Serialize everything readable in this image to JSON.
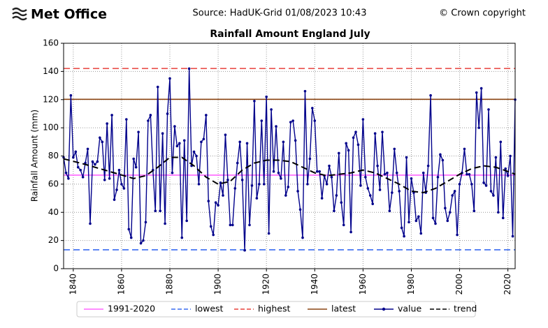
{
  "header": {
    "logo": "Met Office",
    "source": "Source: HadUK-Grid 01/08/2023 10:43",
    "copyright": "© Crown copyright"
  },
  "chart_data": {
    "type": "line",
    "title": "Rainfall Amount England July",
    "ylabel": "Rainfall Amount (mm)",
    "x": [
      1836,
      1837,
      1838,
      1839,
      1840,
      1841,
      1842,
      1843,
      1844,
      1845,
      1846,
      1847,
      1848,
      1849,
      1850,
      1851,
      1852,
      1853,
      1854,
      1855,
      1856,
      1857,
      1858,
      1859,
      1860,
      1861,
      1862,
      1863,
      1864,
      1865,
      1866,
      1867,
      1868,
      1869,
      1870,
      1871,
      1872,
      1873,
      1874,
      1875,
      1876,
      1877,
      1878,
      1879,
      1880,
      1881,
      1882,
      1883,
      1884,
      1885,
      1886,
      1887,
      1888,
      1889,
      1890,
      1891,
      1892,
      1893,
      1894,
      1895,
      1896,
      1897,
      1898,
      1899,
      1900,
      1901,
      1902,
      1903,
      1904,
      1905,
      1906,
      1907,
      1908,
      1909,
      1910,
      1911,
      1912,
      1913,
      1914,
      1915,
      1916,
      1917,
      1918,
      1919,
      1920,
      1921,
      1922,
      1923,
      1924,
      1925,
      1926,
      1927,
      1928,
      1929,
      1930,
      1931,
      1932,
      1933,
      1934,
      1935,
      1936,
      1937,
      1938,
      1939,
      1940,
      1941,
      1942,
      1943,
      1944,
      1945,
      1946,
      1947,
      1948,
      1949,
      1950,
      1951,
      1952,
      1953,
      1954,
      1955,
      1956,
      1957,
      1958,
      1959,
      1960,
      1961,
      1962,
      1963,
      1964,
      1965,
      1966,
      1967,
      1968,
      1969,
      1970,
      1971,
      1972,
      1973,
      1974,
      1975,
      1976,
      1977,
      1978,
      1979,
      1980,
      1981,
      1982,
      1983,
      1984,
      1985,
      1986,
      1987,
      1988,
      1989,
      1990,
      1991,
      1992,
      1993,
      1994,
      1995,
      1996,
      1997,
      1998,
      1999,
      2000,
      2001,
      2002,
      2003,
      2004,
      2005,
      2006,
      2007,
      2008,
      2009,
      2010,
      2011,
      2012,
      2013,
      2014,
      2015,
      2016,
      2017,
      2018,
      2019,
      2020,
      2021,
      2022,
      2023
    ],
    "xlim": [
      1836,
      2023
    ],
    "xticks": [
      1840,
      1860,
      1880,
      1900,
      1920,
      1940,
      1960,
      1980,
      2000,
      2020
    ],
    "ylim": [
      0,
      160
    ],
    "yticks": [
      0,
      20,
      40,
      60,
      80,
      100,
      120,
      140,
      160
    ],
    "grid": true,
    "legend": "bottom",
    "series": [
      {
        "name": "1991-2020",
        "color": "#ff66ff",
        "style": "solid",
        "value": 66.4
      },
      {
        "name": "lowest",
        "color": "#3a6cf0",
        "style": "dashed",
        "value": 13.4
      },
      {
        "name": "highest",
        "color": "#e8413c",
        "style": "dashed",
        "value": 142.1
      },
      {
        "name": "latest",
        "color": "#8b4513",
        "style": "solid",
        "value": 120.2
      },
      {
        "name": "value",
        "color": "#00008b",
        "style": "solid",
        "marker": "dot",
        "values": [
          79,
          68,
          64,
          123,
          79,
          83,
          72,
          70,
          65,
          75,
          85,
          32,
          76,
          74,
          76,
          93,
          90,
          63,
          103,
          64,
          109,
          49,
          56,
          70,
          60,
          57,
          106,
          28,
          22,
          78,
          72,
          97,
          18,
          20,
          33,
          105,
          109,
          70,
          41,
          129,
          41,
          96,
          32,
          110,
          135,
          68,
          101,
          87,
          89,
          22,
          91,
          34,
          142,
          73,
          83,
          80,
          60,
          90,
          92,
          109,
          48,
          30,
          24,
          47,
          45,
          61,
          52,
          95,
          63,
          31,
          31,
          57,
          75,
          90,
          63,
          13,
          89,
          31,
          59,
          119,
          50,
          60,
          105,
          60,
          122,
          25,
          113,
          69,
          101,
          68,
          64,
          90,
          52,
          58,
          104,
          105,
          91,
          55,
          42,
          22,
          126,
          60,
          78,
          114,
          105,
          69,
          69,
          50,
          66,
          60,
          73,
          65,
          41,
          52,
          82,
          47,
          31,
          89,
          84,
          26,
          93,
          97,
          88,
          59,
          106,
          65,
          57,
          52,
          46,
          96,
          73,
          56,
          97,
          67,
          68,
          41,
          54,
          85,
          68,
          55,
          29,
          23,
          79,
          33,
          64,
          54,
          34,
          37,
          25,
          68,
          54,
          73,
          123,
          36,
          32,
          65,
          81,
          77,
          43,
          34,
          40,
          52,
          55,
          24,
          60,
          68,
          85,
          67,
          67,
          60,
          41,
          125,
          100,
          128,
          61,
          59,
          113,
          55,
          52,
          79,
          40,
          90,
          36,
          71,
          66,
          80,
          23,
          120
        ]
      },
      {
        "name": "trend",
        "color": "#000000",
        "style": "dashed",
        "x": [
          1836,
          1845,
          1855,
          1865,
          1870,
          1875,
          1880,
          1885,
          1890,
          1895,
          1900,
          1905,
          1910,
          1915,
          1920,
          1925,
          1930,
          1935,
          1940,
          1945,
          1950,
          1955,
          1960,
          1965,
          1970,
          1975,
          1980,
          1985,
          1990,
          1995,
          2000,
          2005,
          2010,
          2015,
          2020,
          2023
        ],
        "values": [
          78,
          74,
          69,
          64,
          66,
          72,
          79,
          79,
          73,
          65,
          60,
          62,
          70,
          75,
          77,
          77,
          76,
          72,
          68,
          66,
          67,
          68,
          70,
          68,
          64,
          60,
          55,
          54,
          57,
          62,
          67,
          71,
          73,
          72,
          69,
          67
        ]
      }
    ]
  }
}
